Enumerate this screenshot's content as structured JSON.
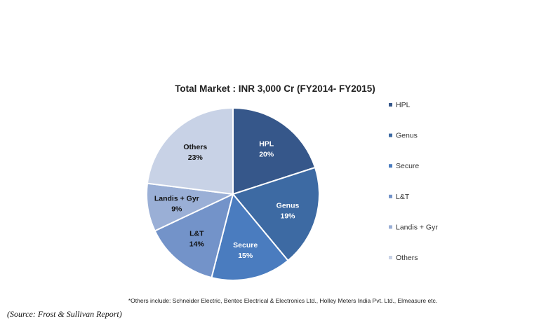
{
  "chart_data": {
    "type": "pie",
    "title": "Total Market : INR 3,000 Cr (FY2014- FY2015)",
    "slices": [
      {
        "name": "HPL",
        "value": 20,
        "label": "20%",
        "color": "#36578a",
        "text_color": "#ffffff"
      },
      {
        "name": "Genus",
        "value": 19,
        "label": "19%",
        "color": "#3d6aa3",
        "text_color": "#ffffff"
      },
      {
        "name": "Secure",
        "value": 15,
        "label": "15%",
        "color": "#4a7cbf",
        "text_color": "#ffffff"
      },
      {
        "name": "L&T",
        "value": 14,
        "label": "14%",
        "color": "#7393c9",
        "text_color": "#111111"
      },
      {
        "name": "Landis + Gyr",
        "value": 9,
        "label": "9%",
        "color": "#9aafd6",
        "text_color": "#111111"
      },
      {
        "name": "Others",
        "value": 23,
        "label": "23%",
        "color": "#c8d2e6",
        "text_color": "#111111"
      }
    ],
    "legend_position": "right",
    "footnote": "*Others include: Schneider Electric, Bentec Electrical & Electronics Ltd., Holley Meters India Pvt. Ltd., Elmeasure etc."
  },
  "source": "(Source: Frost & Sullivan Report)"
}
